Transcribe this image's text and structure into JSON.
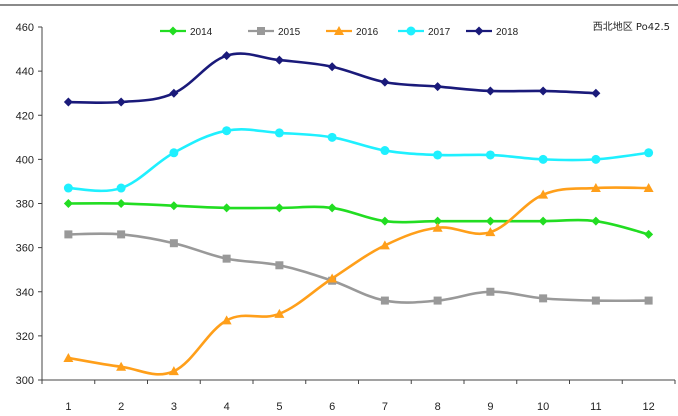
{
  "chart_data": {
    "type": "line",
    "title": "",
    "annotation": "西北地区 Po42.5",
    "xlabel": "",
    "ylabel": "",
    "x": [
      "1",
      "2",
      "3",
      "4",
      "5",
      "6",
      "7",
      "8",
      "9",
      "10",
      "11",
      "12"
    ],
    "ylim": [
      300,
      460
    ],
    "yticks": [
      300,
      320,
      340,
      360,
      380,
      400,
      420,
      440,
      460
    ],
    "grid": false,
    "legend_position": "top",
    "series": [
      {
        "name": "2014",
        "color": "#22dd22",
        "marker": "diamond",
        "values": [
          380,
          380,
          379,
          378,
          378,
          378,
          372,
          372,
          372,
          372,
          372,
          366
        ]
      },
      {
        "name": "2015",
        "color": "#999999",
        "marker": "square",
        "values": [
          366,
          366,
          362,
          355,
          352,
          345,
          336,
          336,
          340,
          337,
          336,
          336
        ]
      },
      {
        "name": "2016",
        "color": "#ff9f1a",
        "marker": "triangle",
        "values": [
          310,
          306,
          304,
          327,
          330,
          346,
          361,
          369,
          367,
          384,
          387,
          387
        ]
      },
      {
        "name": "2017",
        "color": "#1ff0ff",
        "marker": "circle",
        "values": [
          387,
          387,
          403,
          413,
          412,
          410,
          404,
          402,
          402,
          400,
          400,
          403
        ]
      },
      {
        "name": "2018",
        "color": "#1a1a7a",
        "marker": "diamond",
        "values": [
          426,
          426,
          430,
          447,
          445,
          442,
          435,
          433,
          431,
          431,
          430,
          null
        ]
      }
    ]
  }
}
